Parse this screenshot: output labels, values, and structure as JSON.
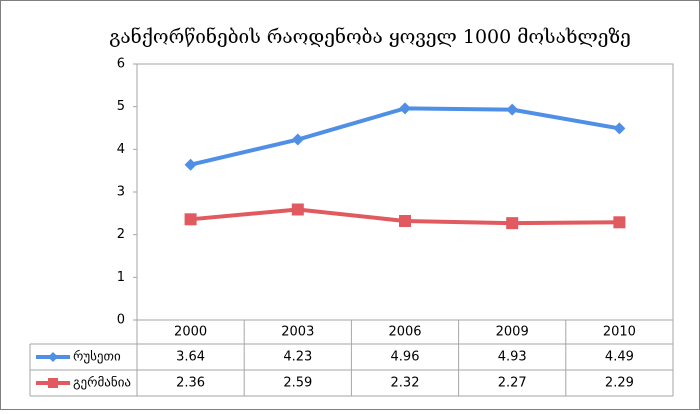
{
  "chart_data": {
    "type": "line",
    "title": "განქორწინების რაოდენობა ყოველ 1000 მოსახლეზე",
    "categories": [
      "2000",
      "2003",
      "2006",
      "2009",
      "2010"
    ],
    "series": [
      {
        "name": "რუსეთი",
        "color": "#4f8fe6",
        "marker": "diamond",
        "values": [
          3.64,
          4.23,
          4.96,
          4.93,
          4.49
        ]
      },
      {
        "name": "გერმანია",
        "color": "#e05a5f",
        "marker": "square",
        "values": [
          2.36,
          2.59,
          2.32,
          2.27,
          2.29
        ]
      }
    ],
    "ylim": [
      0,
      6
    ],
    "yticks": [
      0,
      1,
      2,
      3,
      4,
      5,
      6
    ],
    "grid": false,
    "data_table": true
  }
}
